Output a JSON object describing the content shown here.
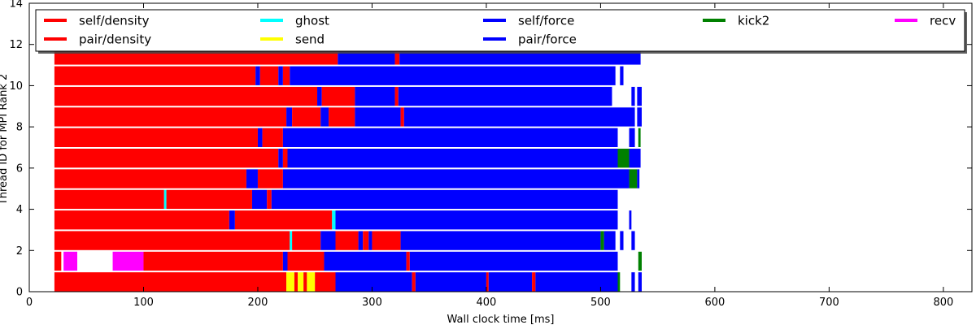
{
  "chart_data": {
    "type": "task-timeline",
    "xlabel": "Wall clock time [ms]",
    "ylabel": "Thread ID for MPI Rank 2",
    "xlim": [
      0,
      825
    ],
    "ylim": [
      0,
      14
    ],
    "x_ticks": [
      0,
      100,
      200,
      300,
      400,
      500,
      600,
      700,
      800
    ],
    "y_ticks": [
      0,
      2,
      4,
      6,
      8,
      10,
      12,
      14
    ],
    "grid": false,
    "legend_position": "top",
    "legend_columns": 5,
    "legend": [
      {
        "label": "self/density",
        "color": "#ff0000"
      },
      {
        "label": "pair/density",
        "color": "#ff0000"
      },
      {
        "label": "ghost",
        "color": "#00ffff"
      },
      {
        "label": "send",
        "color": "#ffff00"
      },
      {
        "label": "self/force",
        "color": "#0000ff"
      },
      {
        "label": "pair/force",
        "color": "#0000ff"
      },
      {
        "label": "kick2",
        "color": "#008000"
      },
      {
        "label": "recv",
        "color": "#ff00ff"
      }
    ],
    "colors": {
      "density": "#ff0000",
      "force": "#0000ff",
      "ghost": "#00ffff",
      "send": "#ffff00",
      "kick2": "#008000",
      "recv": "#ff00ff"
    },
    "threads": [
      {
        "thread": 0,
        "tasks": [
          {
            "type": "density",
            "start": 22,
            "end": 225
          },
          {
            "type": "send",
            "start": 225,
            "end": 232
          },
          {
            "type": "density",
            "start": 232,
            "end": 235
          },
          {
            "type": "send",
            "start": 235,
            "end": 240
          },
          {
            "type": "density",
            "start": 240,
            "end": 243
          },
          {
            "type": "send",
            "start": 243,
            "end": 250
          },
          {
            "type": "density",
            "start": 250,
            "end": 268
          },
          {
            "type": "force",
            "start": 268,
            "end": 335
          },
          {
            "type": "density",
            "start": 335,
            "end": 338
          },
          {
            "type": "force",
            "start": 338,
            "end": 400
          },
          {
            "type": "density",
            "start": 400,
            "end": 402
          },
          {
            "type": "force",
            "start": 402,
            "end": 440
          },
          {
            "type": "density",
            "start": 440,
            "end": 443
          },
          {
            "type": "force",
            "start": 443,
            "end": 515
          },
          {
            "type": "kick2",
            "start": 515,
            "end": 517
          },
          {
            "type": "force",
            "start": 527,
            "end": 530
          },
          {
            "type": "force",
            "start": 533,
            "end": 536
          }
        ]
      },
      {
        "thread": 1,
        "tasks": [
          {
            "type": "density",
            "start": 22,
            "end": 28
          },
          {
            "type": "recv",
            "start": 30,
            "end": 42
          },
          {
            "type": "recv",
            "start": 73,
            "end": 100
          },
          {
            "type": "density",
            "start": 100,
            "end": 222
          },
          {
            "type": "force",
            "start": 222,
            "end": 226
          },
          {
            "type": "density",
            "start": 226,
            "end": 258
          },
          {
            "type": "force",
            "start": 258,
            "end": 330
          },
          {
            "type": "density",
            "start": 330,
            "end": 333
          },
          {
            "type": "force",
            "start": 333,
            "end": 515
          },
          {
            "type": "kick2",
            "start": 533,
            "end": 536
          }
        ]
      },
      {
        "thread": 2,
        "tasks": [
          {
            "type": "density",
            "start": 22,
            "end": 228
          },
          {
            "type": "ghost",
            "start": 228,
            "end": 230
          },
          {
            "type": "density",
            "start": 230,
            "end": 255
          },
          {
            "type": "force",
            "start": 255,
            "end": 268
          },
          {
            "type": "density",
            "start": 268,
            "end": 288
          },
          {
            "type": "force",
            "start": 288,
            "end": 292
          },
          {
            "type": "density",
            "start": 292,
            "end": 297
          },
          {
            "type": "force",
            "start": 297,
            "end": 300
          },
          {
            "type": "density",
            "start": 300,
            "end": 325
          },
          {
            "type": "force",
            "start": 325,
            "end": 500
          },
          {
            "type": "kick2",
            "start": 500,
            "end": 503
          },
          {
            "type": "force",
            "start": 503,
            "end": 513
          },
          {
            "type": "force",
            "start": 517,
            "end": 520
          },
          {
            "type": "force",
            "start": 527,
            "end": 530
          }
        ]
      },
      {
        "thread": 3,
        "tasks": [
          {
            "type": "density",
            "start": 22,
            "end": 175
          },
          {
            "type": "force",
            "start": 175,
            "end": 180
          },
          {
            "type": "density",
            "start": 180,
            "end": 265
          },
          {
            "type": "ghost",
            "start": 265,
            "end": 268
          },
          {
            "type": "force",
            "start": 268,
            "end": 515
          },
          {
            "type": "force",
            "start": 525,
            "end": 527
          }
        ]
      },
      {
        "thread": 4,
        "tasks": [
          {
            "type": "density",
            "start": 22,
            "end": 118
          },
          {
            "type": "ghost",
            "start": 118,
            "end": 120
          },
          {
            "type": "density",
            "start": 120,
            "end": 195
          },
          {
            "type": "force",
            "start": 195,
            "end": 208
          },
          {
            "type": "density",
            "start": 208,
            "end": 212
          },
          {
            "type": "force",
            "start": 212,
            "end": 515
          }
        ]
      },
      {
        "thread": 5,
        "tasks": [
          {
            "type": "density",
            "start": 22,
            "end": 190
          },
          {
            "type": "force",
            "start": 190,
            "end": 200
          },
          {
            "type": "density",
            "start": 200,
            "end": 222
          },
          {
            "type": "force",
            "start": 222,
            "end": 525
          },
          {
            "type": "kick2",
            "start": 525,
            "end": 532
          },
          {
            "type": "force",
            "start": 532,
            "end": 534
          }
        ]
      },
      {
        "thread": 6,
        "tasks": [
          {
            "type": "density",
            "start": 22,
            "end": 218
          },
          {
            "type": "force",
            "start": 218,
            "end": 222
          },
          {
            "type": "density",
            "start": 222,
            "end": 226
          },
          {
            "type": "force",
            "start": 226,
            "end": 515
          },
          {
            "type": "kick2",
            "start": 515,
            "end": 525
          },
          {
            "type": "force",
            "start": 525,
            "end": 535
          }
        ]
      },
      {
        "thread": 7,
        "tasks": [
          {
            "type": "density",
            "start": 22,
            "end": 200
          },
          {
            "type": "force",
            "start": 200,
            "end": 204
          },
          {
            "type": "density",
            "start": 204,
            "end": 222
          },
          {
            "type": "force",
            "start": 222,
            "end": 515
          },
          {
            "type": "force",
            "start": 525,
            "end": 530
          },
          {
            "type": "kick2",
            "start": 533,
            "end": 535
          }
        ]
      },
      {
        "thread": 8,
        "tasks": [
          {
            "type": "density",
            "start": 22,
            "end": 225
          },
          {
            "type": "force",
            "start": 225,
            "end": 230
          },
          {
            "type": "density",
            "start": 230,
            "end": 255
          },
          {
            "type": "force",
            "start": 255,
            "end": 262
          },
          {
            "type": "density",
            "start": 262,
            "end": 285
          },
          {
            "type": "force",
            "start": 285,
            "end": 325
          },
          {
            "type": "density",
            "start": 325,
            "end": 328
          },
          {
            "type": "force",
            "start": 328,
            "end": 530
          },
          {
            "type": "force",
            "start": 532,
            "end": 536
          }
        ]
      },
      {
        "thread": 9,
        "tasks": [
          {
            "type": "density",
            "start": 22,
            "end": 252
          },
          {
            "type": "force",
            "start": 252,
            "end": 256
          },
          {
            "type": "density",
            "start": 256,
            "end": 285
          },
          {
            "type": "force",
            "start": 285,
            "end": 320
          },
          {
            "type": "density",
            "start": 320,
            "end": 323
          },
          {
            "type": "force",
            "start": 323,
            "end": 510
          },
          {
            "type": "force",
            "start": 527,
            "end": 530
          },
          {
            "type": "force",
            "start": 532,
            "end": 536
          }
        ]
      },
      {
        "thread": 10,
        "tasks": [
          {
            "type": "density",
            "start": 22,
            "end": 198
          },
          {
            "type": "force",
            "start": 198,
            "end": 202
          },
          {
            "type": "density",
            "start": 202,
            "end": 218
          },
          {
            "type": "force",
            "start": 218,
            "end": 222
          },
          {
            "type": "density",
            "start": 222,
            "end": 228
          },
          {
            "type": "force",
            "start": 228,
            "end": 513
          },
          {
            "type": "force",
            "start": 517,
            "end": 520
          }
        ]
      },
      {
        "thread": 11,
        "tasks": [
          {
            "type": "density",
            "start": 22,
            "end": 270
          },
          {
            "type": "force",
            "start": 270,
            "end": 320
          },
          {
            "type": "density",
            "start": 320,
            "end": 324
          },
          {
            "type": "force",
            "start": 324,
            "end": 535
          }
        ]
      }
    ]
  }
}
